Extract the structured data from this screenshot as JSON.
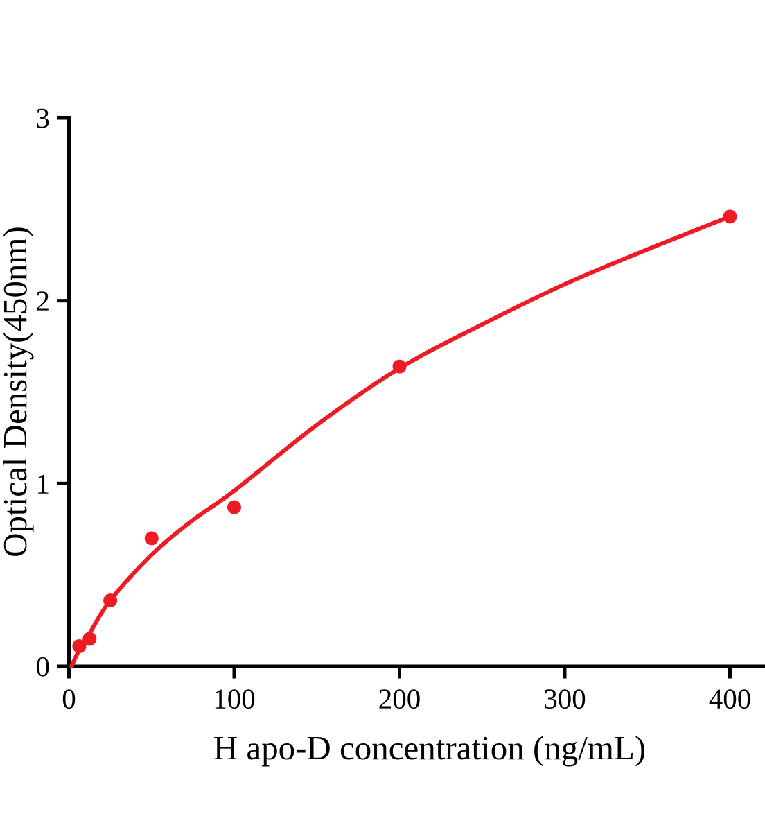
{
  "chart_data": {
    "type": "scatter",
    "title": "",
    "xlabel": "H apo-D concentration (ng/mL)",
    "ylabel": "Optical Density(450nm)",
    "x": [
      6.25,
      12.5,
      25,
      50,
      100,
      200,
      400
    ],
    "y": [
      0.11,
      0.15,
      0.36,
      0.7,
      0.87,
      1.64,
      2.46
    ],
    "fit_line": {
      "x": [
        1.5,
        6.25,
        12.5,
        25,
        50,
        75,
        100,
        150,
        200,
        250,
        300,
        350,
        400
      ],
      "y": [
        0,
        0.09,
        0.18,
        0.36,
        0.61,
        0.8,
        0.96,
        1.32,
        1.63,
        1.87,
        2.09,
        2.28,
        2.46
      ]
    },
    "xticks": [
      0,
      100,
      200,
      300,
      400
    ],
    "yticks": [
      0,
      1,
      2,
      3
    ],
    "xlim": [
      0,
      421
    ],
    "ylim": [
      0,
      3
    ],
    "grid": false,
    "legend": false,
    "marker_color": "#ED1C24",
    "line_color": "#ED1C24",
    "axis_color": "#000000",
    "background_color": "#FFFFFF"
  }
}
